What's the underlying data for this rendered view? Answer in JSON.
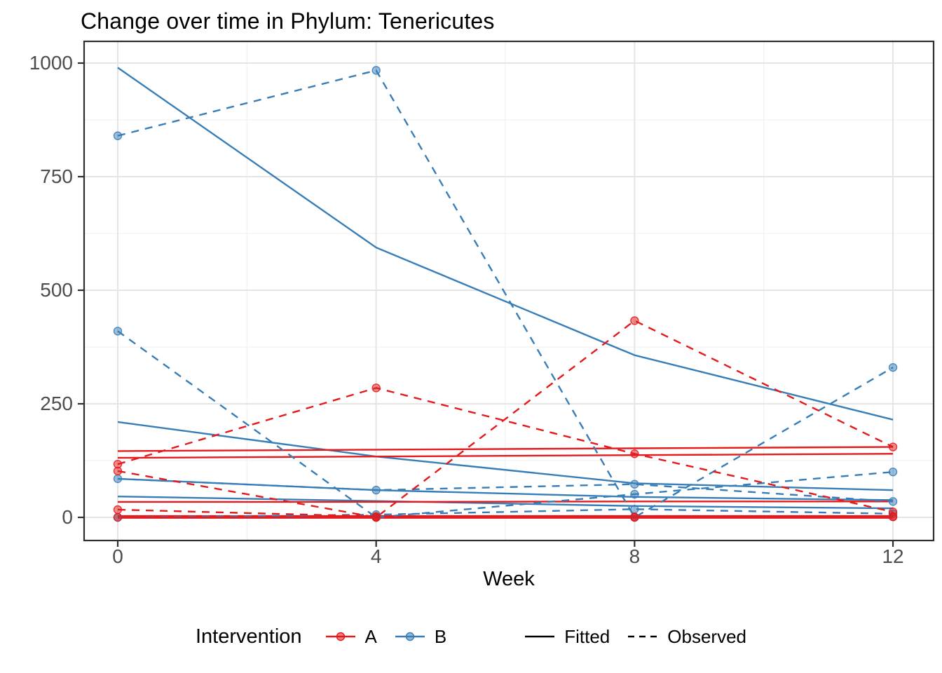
{
  "chart_data": {
    "type": "line",
    "title": "Change over time in Phylum: Tenericutes",
    "xlabel": "Week",
    "ylabel": "",
    "x_ticks": [
      0,
      4,
      8,
      12
    ],
    "x_minor_ticks": [
      2,
      6,
      10
    ],
    "y_ticks": [
      0,
      250,
      500,
      750,
      1000
    ],
    "y_minor_ticks": [
      125,
      375,
      625,
      875
    ],
    "xlim": [
      0,
      12
    ],
    "ylim": [
      0,
      1000
    ],
    "grid": "on",
    "legend_position": "bottom",
    "legend_title": "Intervention",
    "groups": [
      {
        "id": "A",
        "label": "A",
        "color": "#E41A1C"
      },
      {
        "id": "B",
        "label": "B",
        "color": "#377EB8"
      }
    ],
    "linetypes": [
      {
        "id": "fitted",
        "label": "Fitted",
        "style": "solid"
      },
      {
        "id": "observed",
        "label": "Observed",
        "style": "dashed"
      }
    ],
    "weeks": [
      0,
      4,
      8,
      12
    ],
    "series": [
      {
        "group": "B",
        "kind": "fitted",
        "values": [
          990,
          594,
          357,
          215
        ]
      },
      {
        "group": "B",
        "kind": "fitted",
        "values": [
          210,
          134,
          75,
          60
        ]
      },
      {
        "group": "B",
        "kind": "fitted",
        "values": [
          85,
          60,
          45,
          38
        ]
      },
      {
        "group": "B",
        "kind": "fitted",
        "values": [
          46,
          36,
          25,
          20
        ]
      },
      {
        "group": "A",
        "kind": "fitted",
        "values": [
          146,
          149,
          152,
          155
        ]
      },
      {
        "group": "A",
        "kind": "fitted",
        "values": [
          131,
          134,
          137,
          140
        ]
      },
      {
        "group": "A",
        "kind": "fitted",
        "values": [
          34,
          34,
          35,
          35
        ]
      },
      {
        "group": "A",
        "kind": "fitted",
        "values": [
          1,
          1,
          1,
          1
        ],
        "thick": true
      },
      {
        "group": "B",
        "kind": "observed",
        "values": [
          840,
          984,
          0,
          330
        ]
      },
      {
        "group": "B",
        "kind": "observed",
        "values": [
          410,
          0,
          51,
          100
        ]
      },
      {
        "group": "B",
        "kind": "observed",
        "values": [
          85,
          60,
          73,
          35
        ]
      },
      {
        "group": "B",
        "kind": "observed",
        "values": [
          0,
          6,
          18,
          8
        ]
      },
      {
        "group": "A",
        "kind": "observed",
        "values": [
          117,
          285,
          140,
          12
        ]
      },
      {
        "group": "A",
        "kind": "observed",
        "values": [
          102,
          0,
          433,
          155
        ]
      },
      {
        "group": "A",
        "kind": "observed",
        "values": [
          17,
          2,
          1,
          1
        ]
      },
      {
        "group": "A",
        "kind": "observed",
        "values": [
          0,
          0,
          0,
          2
        ]
      }
    ]
  }
}
